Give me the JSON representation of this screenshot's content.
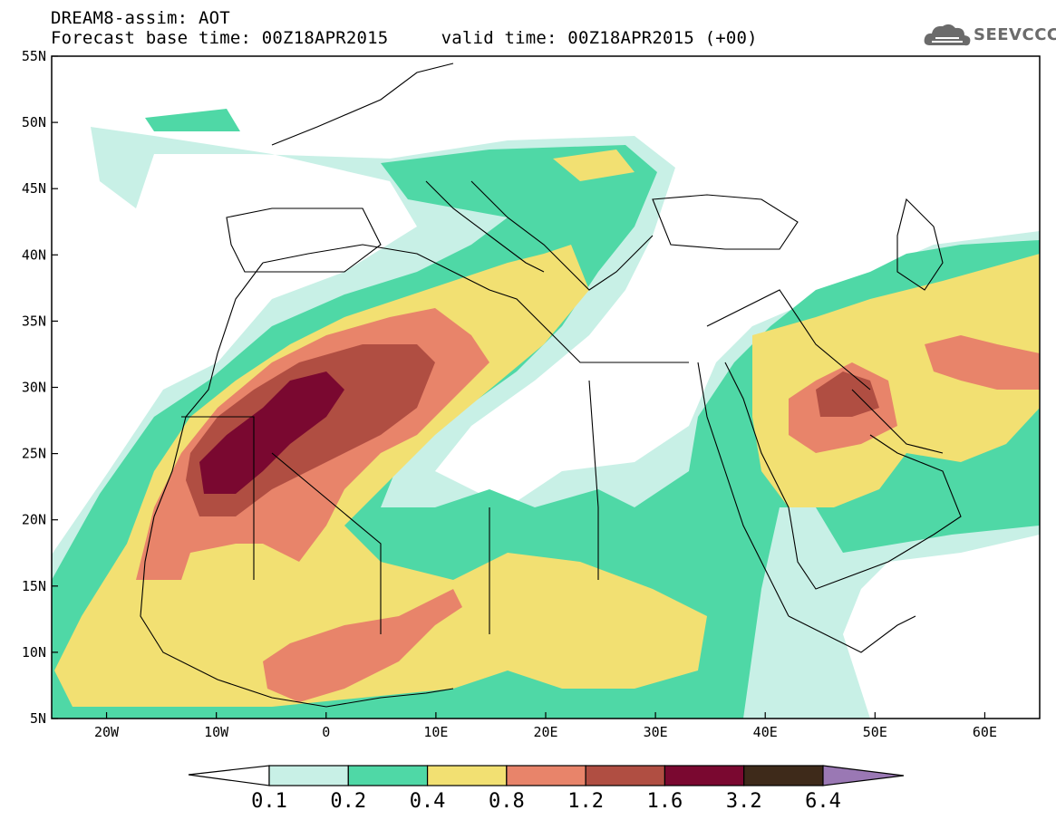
{
  "header": {
    "line1": "DREAM8-assim: AOT",
    "line2": "Forecast base time: 00Z18APR2015     valid time: 00Z18APR2015 (+00)"
  },
  "logo": {
    "text": "SEEVCCC",
    "icon": "cloud-icon"
  },
  "map": {
    "lon_range": [
      -25,
      65
    ],
    "lat_range": [
      5,
      55
    ],
    "x_ticks": [
      "20W",
      "10W",
      "0",
      "10E",
      "20E",
      "30E",
      "40E",
      "50E",
      "60E"
    ],
    "y_ticks": [
      "55N",
      "50N",
      "45N",
      "40N",
      "35N",
      "30N",
      "25N",
      "20N",
      "15N",
      "10N",
      "5N"
    ],
    "variable": "AOT"
  },
  "colorbar": {
    "labels": [
      "0.1",
      "0.2",
      "0.4",
      "0.8",
      "1.2",
      "1.6",
      "3.2",
      "6.4"
    ],
    "colors": [
      "#c8f0e6",
      "#4fd8a6",
      "#f2e072",
      "#e8846a",
      "#b04e42",
      "#7a0830",
      "#3e2a1a",
      "#9a78b4"
    ]
  }
}
